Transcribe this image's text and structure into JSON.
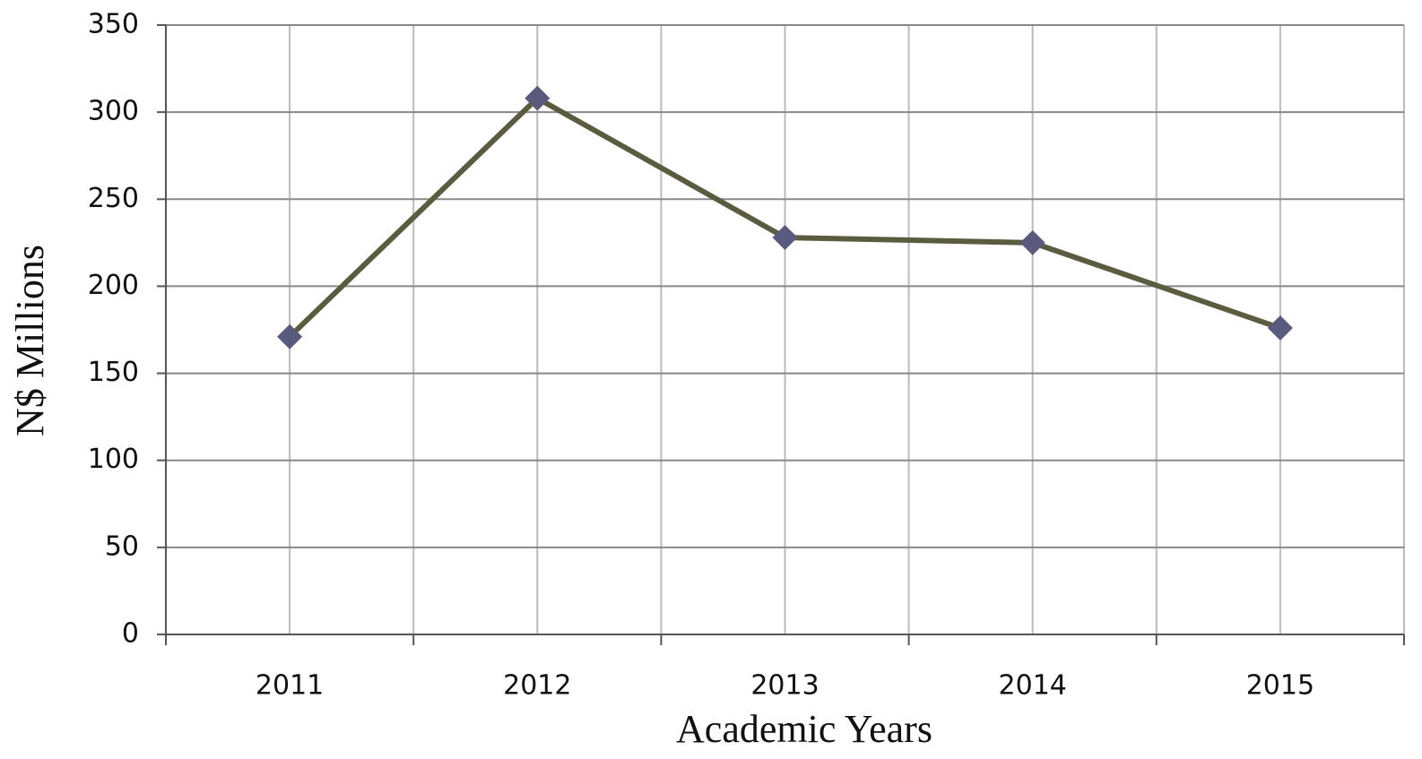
{
  "chart_data": {
    "type": "line",
    "xlabel": "Academic Years",
    "ylabel": "N$ Millions",
    "categories": [
      "2011",
      "2012",
      "2013",
      "2014",
      "2015"
    ],
    "series": [
      {
        "name": "N$ Millions",
        "color": "#5b5b3f",
        "marker_color": "#5a5a7e",
        "values": [
          171,
          308,
          228,
          225,
          176
        ]
      }
    ],
    "ylim": [
      0,
      350
    ],
    "yticks": [
      0,
      50,
      100,
      150,
      200,
      250,
      300,
      350
    ],
    "grid": true
  }
}
